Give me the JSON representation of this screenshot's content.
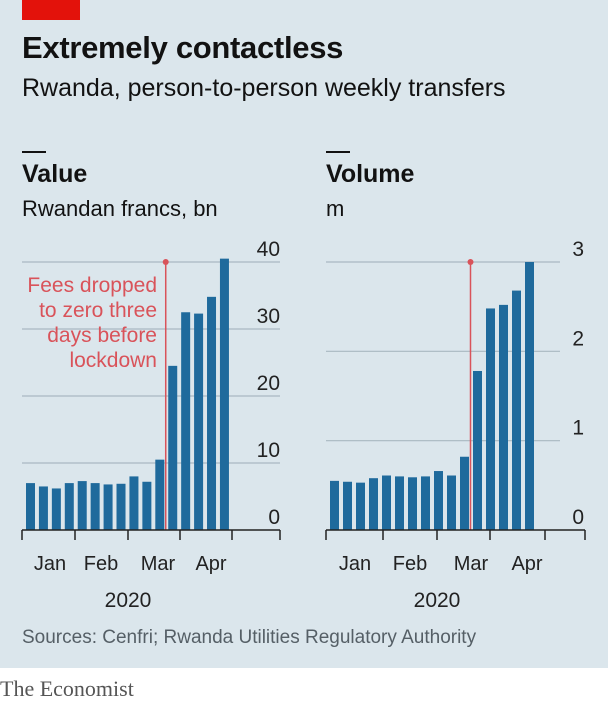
{
  "header": {
    "title": "Extremely contactless",
    "subtitle": "Rwanda, person-to-person weekly transfers"
  },
  "footer": {
    "source": "Sources: Cenfri; Rwanda Utilities Regulatory Authority",
    "brand": "The Economist"
  },
  "colors": {
    "bar": "#1f6a9c",
    "gridline": "#a9b8c1",
    "annotation": "#d9535a",
    "axis": "#222222",
    "background": "#dbe6ec",
    "brand_red": "#e3120b"
  },
  "chart_data": [
    {
      "type": "bar",
      "title": "Value",
      "ylabel": "Rwandan francs, bn",
      "ylim": [
        0,
        40
      ],
      "yticks": [
        0,
        10,
        20,
        30,
        40
      ],
      "month_labels": [
        "Jan",
        "Feb",
        "Mar",
        "Apr"
      ],
      "year_label": "2020",
      "values": [
        7,
        6.5,
        6.2,
        7,
        7.3,
        7,
        6.8,
        6.9,
        8,
        7.2,
        10.5,
        24.5,
        32.5,
        32.3,
        34.8,
        40.5
      ],
      "annotation": {
        "lines": [
          "Fees dropped",
          "to zero three",
          "days before",
          "lockdown"
        ],
        "after_bar_index": 11
      }
    },
    {
      "type": "bar",
      "title": "Volume",
      "ylabel": "m",
      "ylim": [
        0,
        3
      ],
      "yticks": [
        0,
        1,
        2,
        3
      ],
      "month_labels": [
        "Jan",
        "Feb",
        "Mar",
        "Apr"
      ],
      "year_label": "2020",
      "values": [
        0.55,
        0.54,
        0.53,
        0.58,
        0.61,
        0.6,
        0.59,
        0.6,
        0.66,
        0.61,
        0.82,
        1.78,
        2.48,
        2.52,
        2.68,
        3.0
      ]
    }
  ]
}
